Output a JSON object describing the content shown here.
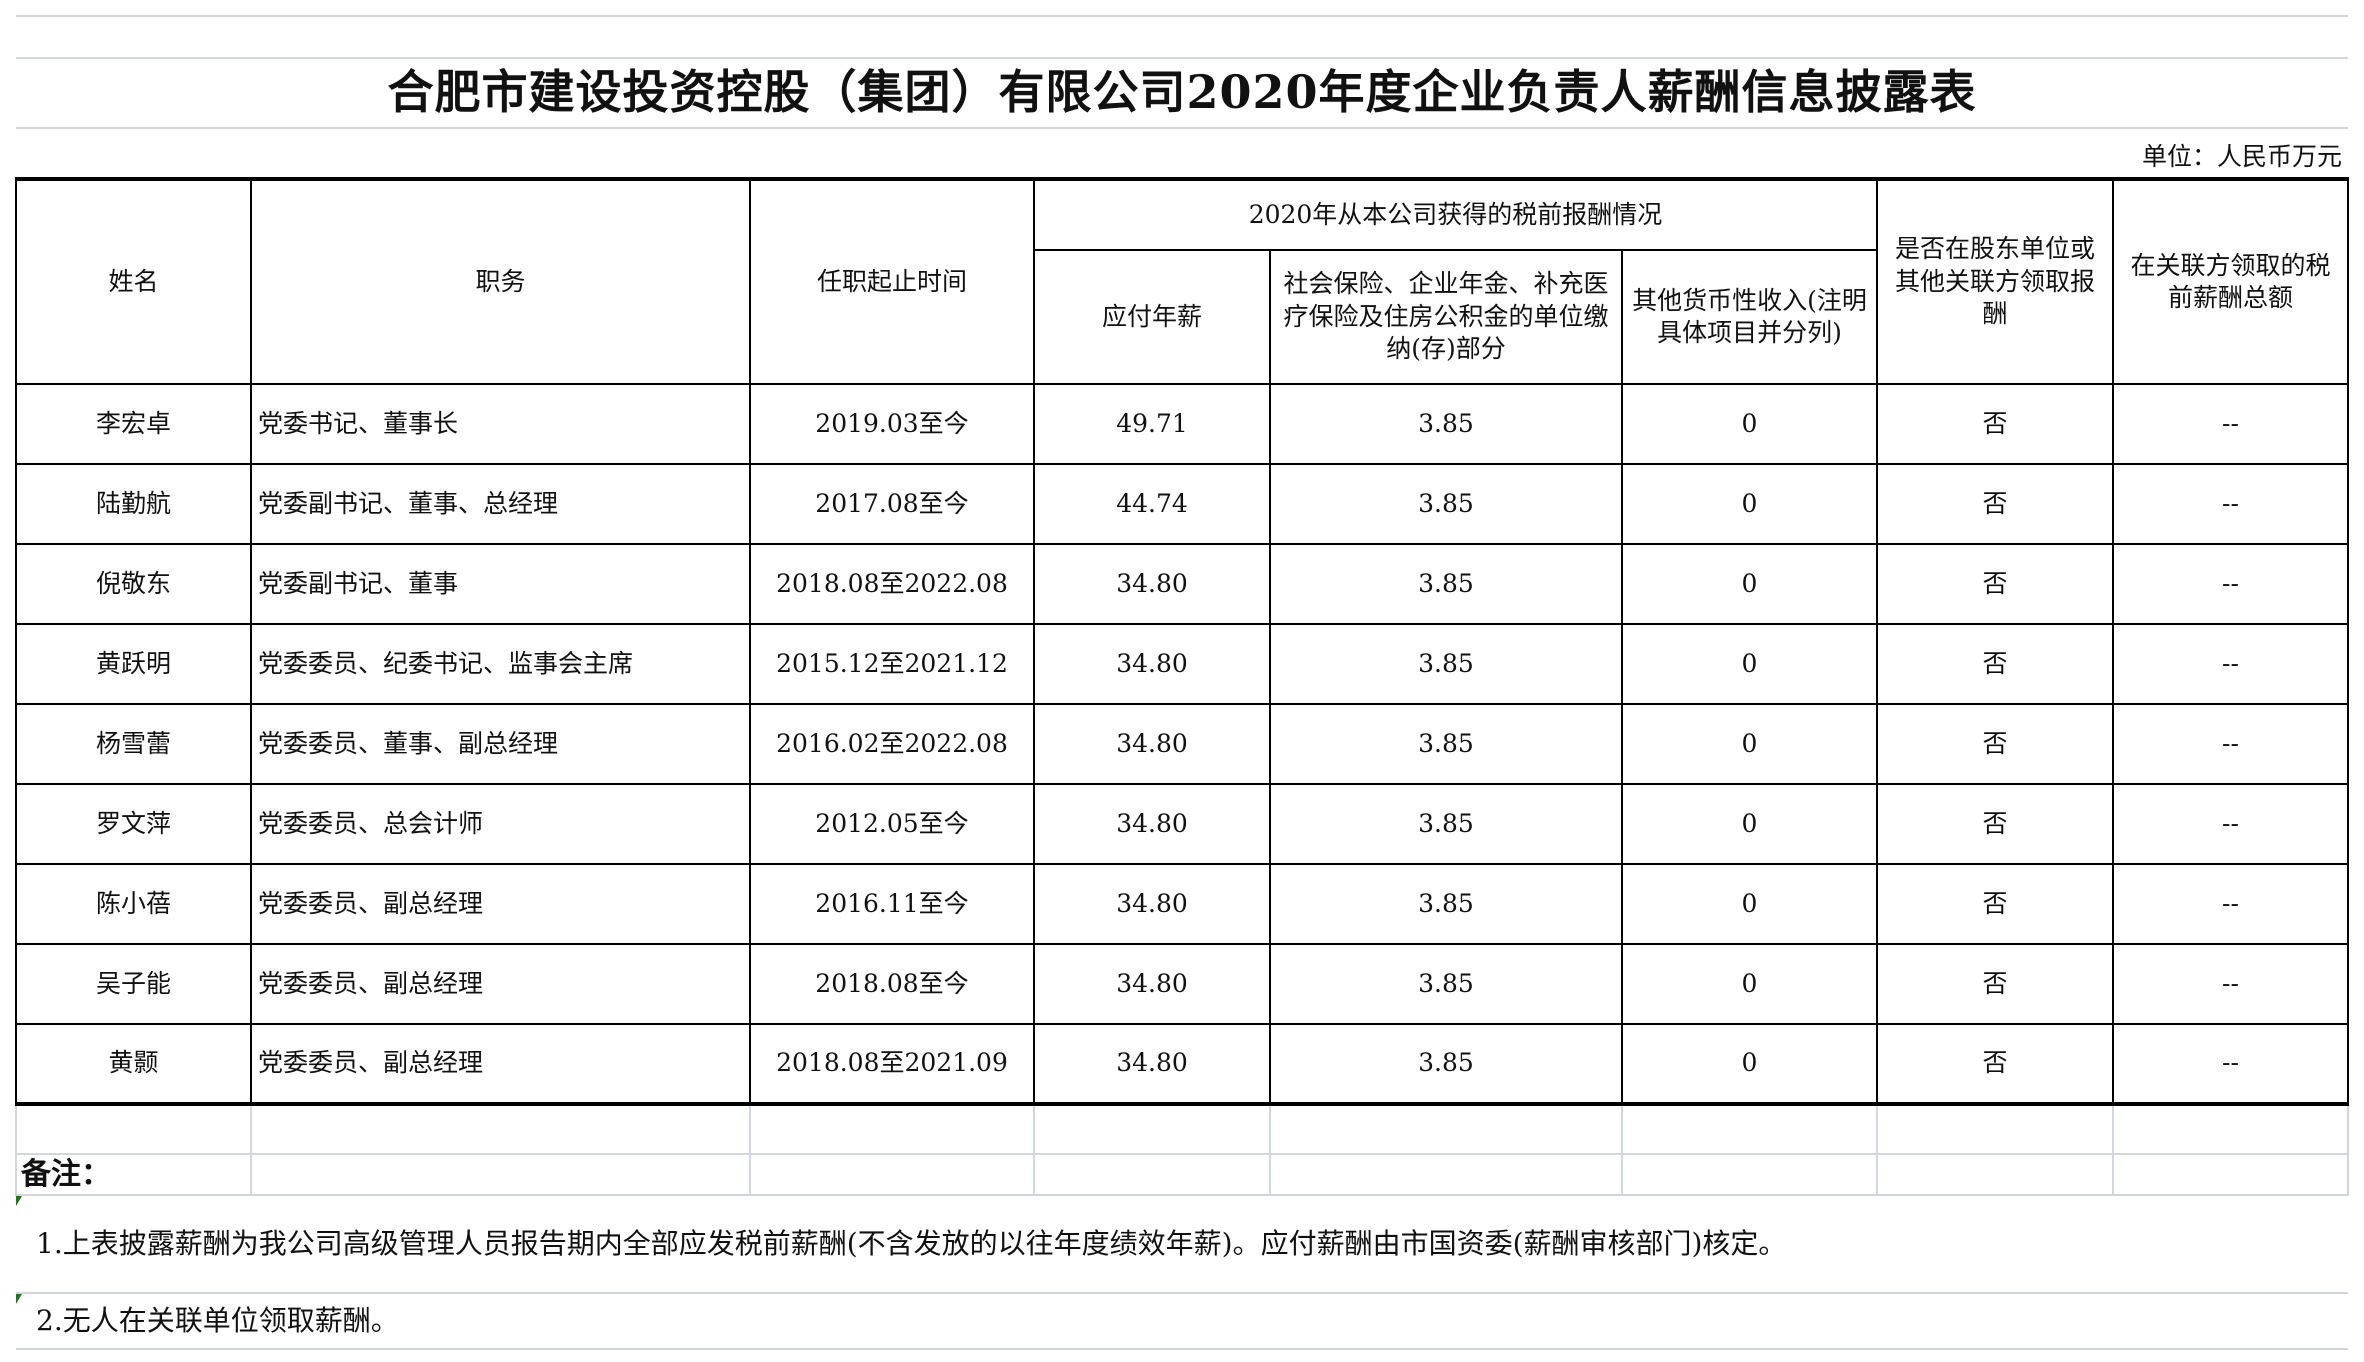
{
  "title": "合肥市建设投资控股（集团）有限公司2020年度企业负责人薪酬信息披露表",
  "unit": "单位：人民币万元",
  "headers": {
    "name": "姓名",
    "position": "职务",
    "term": "任职起止时间",
    "group": "2020年从本公司获得的税前报酬情况",
    "salary": "应付年薪",
    "insurance": "社会保险、企业年金、补充医疗保险及住房公积金的单位缴纳(存)部分",
    "other": "其他货币性收入(注明具体项目并分列)",
    "shareholder": "是否在股东单位或其他关联方领取报酬",
    "related_total": "在关联方领取的税前薪酬总额"
  },
  "rows": [
    {
      "name": "李宏卓",
      "position": "党委书记、董事长",
      "term": "2019.03至今",
      "salary": "49.71",
      "insurance": "3.85",
      "other": "0",
      "shareholder": "否",
      "related_total": "--"
    },
    {
      "name": "陆勤航",
      "position": "党委副书记、董事、总经理",
      "term": "2017.08至今",
      "salary": "44.74",
      "insurance": "3.85",
      "other": "0",
      "shareholder": "否",
      "related_total": "--"
    },
    {
      "name": "倪敬东",
      "position": "党委副书记、董事",
      "term": "2018.08至2022.08",
      "salary": "34.80",
      "insurance": "3.85",
      "other": "0",
      "shareholder": "否",
      "related_total": "--"
    },
    {
      "name": "黄跃明",
      "position": "党委委员、纪委书记、监事会主席",
      "term": "2015.12至2021.12",
      "salary": "34.80",
      "insurance": "3.85",
      "other": "0",
      "shareholder": "否",
      "related_total": "--"
    },
    {
      "name": "杨雪蕾",
      "position": "党委委员、董事、副总经理",
      "term": "2016.02至2022.08",
      "salary": "34.80",
      "insurance": "3.85",
      "other": "0",
      "shareholder": "否",
      "related_total": "--"
    },
    {
      "name": "罗文萍",
      "position": "党委委员、总会计师",
      "term": "2012.05至今",
      "salary": "34.80",
      "insurance": "3.85",
      "other": "0",
      "shareholder": "否",
      "related_total": "--"
    },
    {
      "name": "陈小蓓",
      "position": "党委委员、副总经理",
      "term": "2016.11至今",
      "salary": "34.80",
      "insurance": "3.85",
      "other": "0",
      "shareholder": "否",
      "related_total": "--"
    },
    {
      "name": "吴子能",
      "position": "党委委员、副总经理",
      "term": "2018.08至今",
      "salary": "34.80",
      "insurance": "3.85",
      "other": "0",
      "shareholder": "否",
      "related_total": "--"
    },
    {
      "name": "黄颢",
      "position": "党委委员、副总经理",
      "term": "2018.08至2021.09",
      "salary": "34.80",
      "insurance": "3.85",
      "other": "0",
      "shareholder": "否",
      "related_total": "--"
    }
  ],
  "notes": {
    "label": "备注：",
    "items": [
      "1.上表披露薪酬为我公司高级管理人员报告期内全部应发税前薪酬(不含发放的以往年度绩效年薪)。应付薪酬由市国资委(薪酬审核部门)核定。",
      "2.无人在关联单位领取薪酬。"
    ]
  }
}
